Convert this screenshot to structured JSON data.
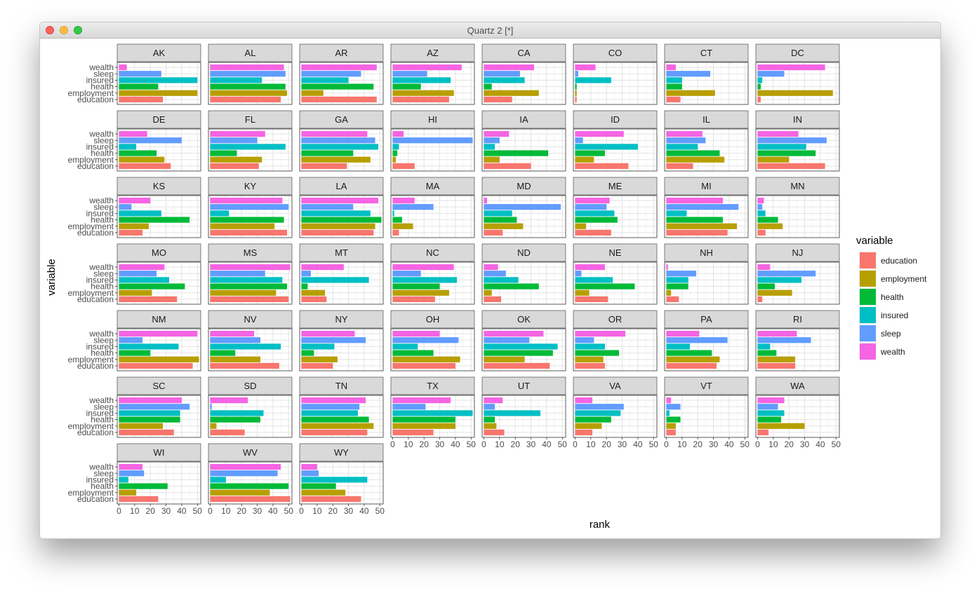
{
  "window": {
    "title": "Quartz 2 [*]"
  },
  "chart_data": {
    "type": "bar",
    "orientation": "horizontal",
    "faceted_by": "state",
    "xlabel": "rank",
    "ylabel": "variable",
    "xlim": [
      0,
      51
    ],
    "x_ticks": [
      0,
      10,
      20,
      30,
      40,
      50
    ],
    "grid": true,
    "legend": {
      "title": "variable",
      "position": "right",
      "items": [
        {
          "name": "education",
          "color": "#F8766D"
        },
        {
          "name": "employment",
          "color": "#B79F00"
        },
        {
          "name": "health",
          "color": "#00BA38"
        },
        {
          "name": "insured",
          "color": "#00BFC4"
        },
        {
          "name": "sleep",
          "color": "#619CFF"
        },
        {
          "name": "wealth",
          "color": "#F564E3"
        }
      ]
    },
    "categories": [
      "education",
      "employment",
      "health",
      "insured",
      "sleep",
      "wealth"
    ],
    "panels": [
      {
        "state": "AK",
        "values": [
          28,
          50,
          25,
          50,
          27,
          5
        ]
      },
      {
        "state": "AL",
        "values": [
          45,
          49,
          48,
          33,
          48,
          47
        ]
      },
      {
        "state": "AR",
        "values": [
          48,
          14,
          46,
          30,
          38,
          48
        ]
      },
      {
        "state": "AZ",
        "values": [
          36,
          39,
          18,
          37,
          22,
          44
        ]
      },
      {
        "state": "CA",
        "values": [
          18,
          35,
          5,
          26,
          23,
          32
        ]
      },
      {
        "state": "CO",
        "values": [
          1,
          1,
          1,
          23,
          2,
          13
        ]
      },
      {
        "state": "CT",
        "values": [
          9,
          31,
          10,
          10,
          28,
          6
        ]
      },
      {
        "state": "DC",
        "values": [
          2,
          48,
          2,
          3,
          17,
          43
        ]
      },
      {
        "state": "DE",
        "values": [
          33,
          29,
          24,
          11,
          40,
          18
        ]
      },
      {
        "state": "FL",
        "values": [
          31,
          33,
          17,
          48,
          30,
          35
        ]
      },
      {
        "state": "GA",
        "values": [
          29,
          44,
          33,
          49,
          47,
          42
        ]
      },
      {
        "state": "HI",
        "values": [
          14,
          2,
          3,
          4,
          51,
          7
        ]
      },
      {
        "state": "IA",
        "values": [
          30,
          10,
          41,
          7,
          10,
          16
        ]
      },
      {
        "state": "ID",
        "values": [
          34,
          12,
          19,
          40,
          5,
          31
        ]
      },
      {
        "state": "IL",
        "values": [
          17,
          37,
          34,
          20,
          25,
          23
        ]
      },
      {
        "state": "IN",
        "values": [
          43,
          20,
          37,
          31,
          44,
          26
        ]
      },
      {
        "state": "KS",
        "values": [
          15,
          19,
          45,
          27,
          8,
          20
        ]
      },
      {
        "state": "KY",
        "values": [
          49,
          41,
          47,
          12,
          50,
          46
        ]
      },
      {
        "state": "LA",
        "values": [
          46,
          47,
          51,
          44,
          33,
          49
        ]
      },
      {
        "state": "MA",
        "values": [
          4,
          13,
          6,
          1,
          26,
          14
        ]
      },
      {
        "state": "MD",
        "values": [
          12,
          25,
          21,
          18,
          49,
          2
        ]
      },
      {
        "state": "ME",
        "values": [
          23,
          7,
          27,
          25,
          20,
          22
        ]
      },
      {
        "state": "MI",
        "values": [
          39,
          45,
          36,
          13,
          46,
          36
        ]
      },
      {
        "state": "MN",
        "values": [
          5,
          16,
          13,
          5,
          3,
          4
        ]
      },
      {
        "state": "MO",
        "values": [
          37,
          21,
          42,
          32,
          24,
          29
        ]
      },
      {
        "state": "MS",
        "values": [
          50,
          42,
          49,
          46,
          35,
          51
        ]
      },
      {
        "state": "MT",
        "values": [
          16,
          15,
          4,
          43,
          6,
          27
        ]
      },
      {
        "state": "NC",
        "values": [
          27,
          36,
          30,
          41,
          18,
          39
        ]
      },
      {
        "state": "ND",
        "values": [
          11,
          5,
          35,
          22,
          14,
          9
        ]
      },
      {
        "state": "NE",
        "values": [
          21,
          9,
          38,
          24,
          4,
          19
        ]
      },
      {
        "state": "NH",
        "values": [
          8,
          3,
          14,
          14,
          19,
          1
        ]
      },
      {
        "state": "NJ",
        "values": [
          3,
          22,
          11,
          28,
          37,
          8
        ]
      },
      {
        "state": "NM",
        "values": [
          47,
          51,
          20,
          38,
          15,
          50
        ]
      },
      {
        "state": "NV",
        "values": [
          44,
          32,
          16,
          45,
          32,
          28
        ]
      },
      {
        "state": "NY",
        "values": [
          20,
          23,
          8,
          21,
          41,
          34
        ]
      },
      {
        "state": "OH",
        "values": [
          40,
          43,
          26,
          16,
          42,
          30
        ]
      },
      {
        "state": "OK",
        "values": [
          42,
          26,
          44,
          47,
          29,
          38
        ]
      },
      {
        "state": "OR",
        "values": [
          19,
          18,
          28,
          19,
          12,
          32
        ]
      },
      {
        "state": "PA",
        "values": [
          32,
          34,
          29,
          15,
          39,
          21
        ]
      },
      {
        "state": "RI",
        "values": [
          24,
          24,
          12,
          8,
          34,
          25
        ]
      },
      {
        "state": "SC",
        "values": [
          35,
          28,
          39,
          39,
          45,
          40
        ]
      },
      {
        "state": "SD",
        "values": [
          22,
          4,
          32,
          34,
          1,
          24
        ]
      },
      {
        "state": "TN",
        "values": [
          42,
          46,
          43,
          36,
          37,
          41
        ]
      },
      {
        "state": "TX",
        "values": [
          26,
          40,
          40,
          51,
          21,
          37
        ]
      },
      {
        "state": "UT",
        "values": [
          13,
          8,
          7,
          36,
          7,
          12
        ]
      },
      {
        "state": "VA",
        "values": [
          11,
          17,
          23,
          29,
          31,
          11
        ]
      },
      {
        "state": "VT",
        "values": [
          6,
          6,
          9,
          2,
          9,
          3
        ]
      },
      {
        "state": "WA",
        "values": [
          7,
          30,
          15,
          17,
          13,
          17
        ]
      },
      {
        "state": "WI",
        "values": [
          25,
          11,
          31,
          6,
          16,
          15
        ]
      },
      {
        "state": "WV",
        "values": [
          51,
          38,
          50,
          10,
          43,
          45
        ]
      },
      {
        "state": "WY",
        "values": [
          38,
          28,
          22,
          42,
          11,
          10
        ]
      }
    ]
  }
}
